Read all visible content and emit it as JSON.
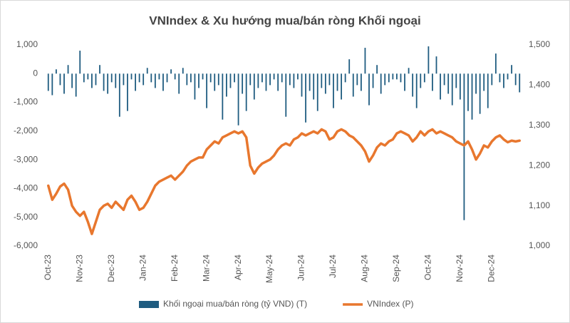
{
  "chart_data": {
    "type": "bar_line",
    "title": "VNIndex & Xu hướng mua/bán ròng Khối ngoại",
    "categories": [
      "Oct-23",
      null,
      null,
      null,
      null,
      null,
      null,
      null,
      "Nov-23",
      null,
      null,
      null,
      null,
      null,
      null,
      null,
      "Dec-23",
      null,
      null,
      null,
      null,
      null,
      null,
      null,
      "Jan-24",
      null,
      null,
      null,
      null,
      null,
      null,
      null,
      "Feb-24",
      null,
      null,
      null,
      null,
      null,
      null,
      null,
      "Mar-24",
      null,
      null,
      null,
      null,
      null,
      null,
      null,
      "Apr-24",
      null,
      null,
      null,
      null,
      null,
      null,
      null,
      "May-24",
      null,
      null,
      null,
      null,
      null,
      null,
      null,
      "Jun-24",
      null,
      null,
      null,
      null,
      null,
      null,
      null,
      "Jul-24",
      null,
      null,
      null,
      null,
      null,
      null,
      null,
      "Aug-24",
      null,
      null,
      null,
      null,
      null,
      null,
      null,
      "Sep-24",
      null,
      null,
      null,
      null,
      null,
      null,
      null,
      "Oct-24",
      null,
      null,
      null,
      null,
      null,
      null,
      null,
      "Nov-24",
      null,
      null,
      null,
      null,
      null,
      null,
      null,
      "Dec-24",
      null,
      null,
      null,
      null,
      null,
      null,
      null
    ],
    "series": [
      {
        "name": "Khối ngoại mua/bán ròng (tỷ VND) (T)",
        "kind": "bar",
        "axis": "y",
        "color": "#1f5c80",
        "values": [
          -600,
          -750,
          150,
          -400,
          -700,
          300,
          -500,
          -800,
          800,
          -300,
          -200,
          -500,
          -400,
          300,
          -600,
          -700,
          -300,
          -500,
          -1500,
          -400,
          -1300,
          -200,
          -600,
          -300,
          -400,
          200,
          -300,
          -500,
          -200,
          -600,
          -300,
          150,
          -200,
          -700,
          200,
          -400,
          -300,
          -900,
          -500,
          -200,
          -1200,
          -300,
          -600,
          -400,
          -1600,
          -800,
          -500,
          -300,
          -1800,
          -700,
          -1300,
          -400,
          -900,
          -500,
          -300,
          -600,
          -400,
          -200,
          -600,
          -300,
          -1500,
          -400,
          -500,
          -200,
          -800,
          -1700,
          -600,
          -900,
          -1300,
          -500,
          -700,
          -400,
          -1200,
          -600,
          -900,
          -300,
          500,
          -800,
          -400,
          -600,
          900,
          -1100,
          -500,
          300,
          -700,
          -400,
          -300,
          -200,
          -200,
          -300,
          -600,
          200,
          -800,
          -1200,
          -500,
          -300,
          950,
          -600,
          600,
          -900,
          -400,
          -700,
          -1100,
          -500,
          -900,
          -5100,
          -1300,
          -1600,
          -700,
          -1400,
          -600,
          -1200,
          -400,
          700,
          -300,
          -500,
          -200,
          300,
          -400,
          -650
        ]
      },
      {
        "name": "VNIndex (P)",
        "kind": "line",
        "axis": "y2",
        "color": "#e8772e",
        "values": [
          1150,
          1115,
          1130,
          1148,
          1155,
          1140,
          1100,
          1085,
          1075,
          1085,
          1060,
          1030,
          1060,
          1090,
          1100,
          1105,
          1095,
          1110,
          1100,
          1090,
          1115,
          1125,
          1110,
          1090,
          1095,
          1110,
          1130,
          1150,
          1160,
          1165,
          1170,
          1175,
          1165,
          1175,
          1185,
          1200,
          1210,
          1215,
          1220,
          1220,
          1240,
          1250,
          1260,
          1255,
          1270,
          1275,
          1280,
          1285,
          1280,
          1285,
          1270,
          1200,
          1180,
          1195,
          1205,
          1210,
          1215,
          1225,
          1240,
          1250,
          1255,
          1250,
          1265,
          1270,
          1280,
          1275,
          1280,
          1285,
          1280,
          1290,
          1285,
          1265,
          1270,
          1285,
          1290,
          1285,
          1275,
          1270,
          1260,
          1250,
          1235,
          1210,
          1225,
          1245,
          1255,
          1250,
          1260,
          1265,
          1280,
          1285,
          1280,
          1275,
          1260,
          1270,
          1285,
          1275,
          1285,
          1290,
          1280,
          1285,
          1280,
          1275,
          1270,
          1260,
          1255,
          1250,
          1260,
          1240,
          1215,
          1230,
          1250,
          1245,
          1260,
          1270,
          1275,
          1265,
          1258,
          1262,
          1260,
          1262
        ]
      }
    ],
    "ylim": [
      -6000,
      1000
    ],
    "yticks": [
      {
        "value": -6000,
        "label": "-6,000"
      },
      {
        "value": -5000,
        "label": "-5,000"
      },
      {
        "value": -4000,
        "label": "-4,000"
      },
      {
        "value": -3000,
        "label": "-3,000"
      },
      {
        "value": -2000,
        "label": "-2,000"
      },
      {
        "value": -1000,
        "label": "-1,000"
      },
      0,
      {
        "value": 1000,
        "label": "1,000"
      }
    ],
    "y2lim": [
      1000,
      1500
    ],
    "y2ticks": [
      {
        "value": 1000,
        "label": "1,000"
      },
      {
        "value": 1100,
        "label": "1,100"
      },
      {
        "value": 1200,
        "label": "1,200"
      },
      {
        "value": 1300,
        "label": "1,300"
      },
      {
        "value": 1400,
        "label": "1,400"
      },
      {
        "value": 1500,
        "label": "1,500"
      }
    ],
    "legend": "bottom"
  }
}
